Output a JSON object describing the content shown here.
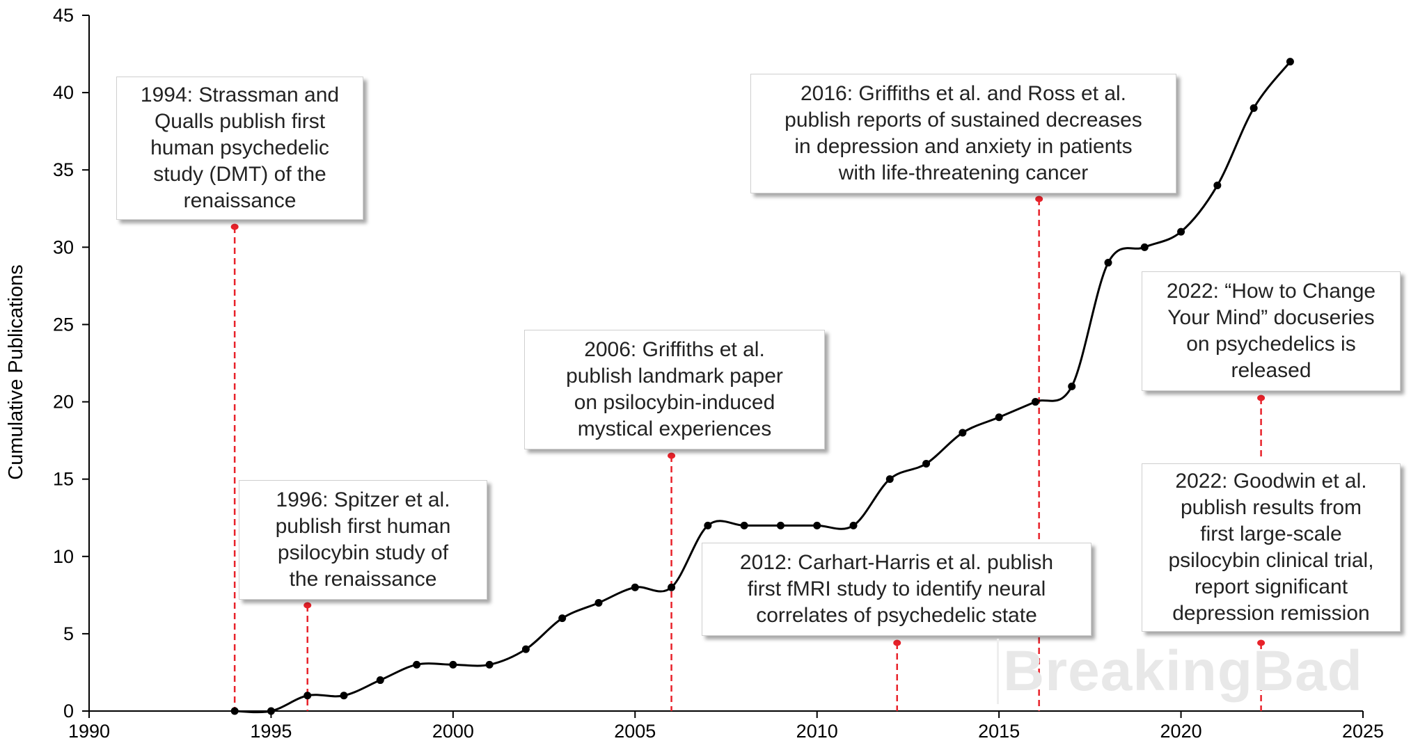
{
  "chart_data": {
    "type": "line",
    "ylabel": "Cumulative Publications",
    "xlabel": "",
    "xlim": [
      1990,
      2025
    ],
    "ylim": [
      0,
      45
    ],
    "x_ticks": [
      "1990",
      "1995",
      "2000",
      "2005",
      "2010",
      "2015",
      "2020",
      "2025"
    ],
    "y_ticks": [
      "0",
      "5",
      "10",
      "15",
      "20",
      "25",
      "30",
      "35",
      "40",
      "45"
    ],
    "grid": false,
    "series": [
      {
        "x": [
          1994,
          1995,
          1996,
          1997,
          1998,
          1999,
          2000,
          2001,
          2002,
          2003,
          2004,
          2005,
          2006,
          2007,
          2008,
          2009,
          2010,
          2011,
          2012,
          2013,
          2014,
          2015,
          2016,
          2017,
          2018,
          2019,
          2020,
          2021,
          2022,
          2023
        ],
        "values": [
          0,
          0,
          1,
          1,
          2,
          3,
          3,
          3,
          4,
          6,
          7,
          8,
          8,
          12,
          12,
          12,
          12,
          12,
          15,
          16,
          18,
          19,
          20,
          21,
          29,
          30,
          31,
          34,
          39,
          42
        ]
      }
    ],
    "colors": {
      "line": "#000000",
      "annotation_marker": "#e8222a"
    },
    "annotations": [
      {
        "x": 1994.0,
        "text_lines": [
          "1994: Strassman and",
          "Qualls publish first",
          "human psychedelic",
          "study (DMT) of the",
          "renaissance"
        ]
      },
      {
        "x": 1996.0,
        "text_lines": [
          "1996: Spitzer et al.",
          "publish first human",
          "psilocybin study of",
          "the renaissance"
        ]
      },
      {
        "x": 2006.0,
        "text_lines": [
          "2006: Griffiths et al.",
          "publish landmark paper",
          "on psilocybin-induced",
          "mystical experiences"
        ]
      },
      {
        "x": 2012.2,
        "text_lines": [
          "2012: Carhart-Harris et al. publish",
          "first fMRI study to identify neural",
          "correlates of psychedelic state"
        ]
      },
      {
        "x": 2016.1,
        "text_lines": [
          "2016: Griffiths et al. and Ross et al.",
          "publish reports of sustained decreases",
          "in depression and anxiety in patients",
          "with life-threatening cancer"
        ]
      },
      {
        "x": 2022.2,
        "text_lines": [
          "2022: “How to Change",
          "Your Mind” docuseries",
          "on psychedelics is",
          "released"
        ]
      },
      {
        "x": 2022.2,
        "text_lines": [
          "2022: Goodwin et al.",
          "publish results from",
          "first large-scale",
          "psilocybin clinical trial,",
          "report significant",
          "depression remission"
        ]
      }
    ]
  },
  "watermark": "BreakingBad"
}
